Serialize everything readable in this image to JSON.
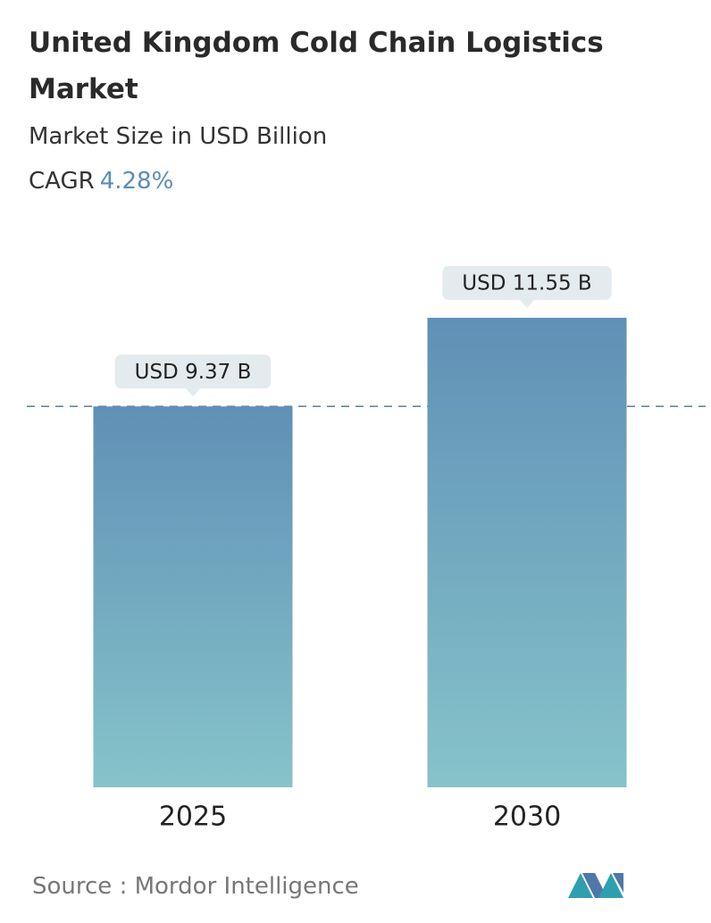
{
  "chart_data": {
    "type": "bar",
    "title": "United Kingdom Cold Chain Logistics Market",
    "subtitle": "Market Size in USD Billion",
    "cagr_label": "CAGR",
    "cagr_value": "4.28%",
    "categories": [
      "2025",
      "2030"
    ],
    "values": [
      9.37,
      11.55
    ],
    "value_labels": [
      "USD 9.37 B",
      "USD 11.55 B"
    ],
    "color": "#6a9bbd",
    "source": "Source :  Mordor Intelligence"
  }
}
